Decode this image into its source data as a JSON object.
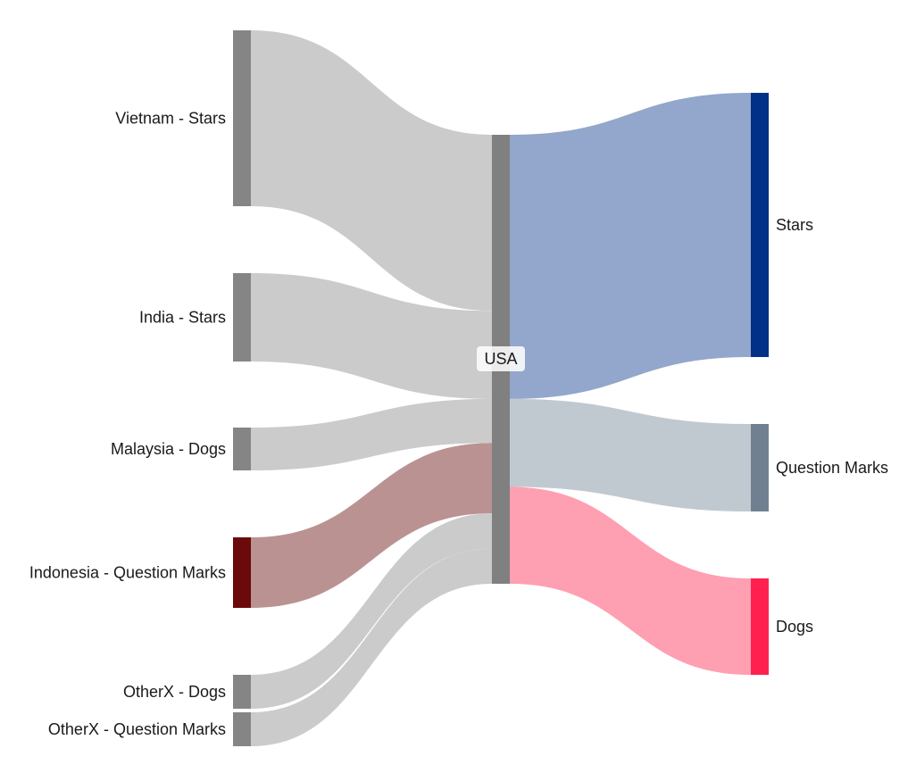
{
  "chart_data": {
    "type": "sankey",
    "nodes": [
      {
        "id": "vietnam_stars",
        "label": "Vietnam - Stars",
        "color": "#858585"
      },
      {
        "id": "india_stars",
        "label": "India - Stars",
        "color": "#858585"
      },
      {
        "id": "malaysia_dogs",
        "label": "Malaysia - Dogs",
        "color": "#858585"
      },
      {
        "id": "indonesia_qm",
        "label": "Indonesia - Question Marks",
        "color": "#6b0a0a"
      },
      {
        "id": "otherx_dogs",
        "label": "OtherX - Dogs",
        "color": "#858585"
      },
      {
        "id": "otherx_qm",
        "label": "OtherX - Question Marks",
        "color": "#858585"
      },
      {
        "id": "usa",
        "label": "USA",
        "color": "#808080"
      },
      {
        "id": "stars",
        "label": "Stars",
        "color": "#003087"
      },
      {
        "id": "question_marks",
        "label": "Question Marks",
        "color": "#708090"
      },
      {
        "id": "dogs",
        "label": "Dogs",
        "color": "#ff2050"
      }
    ],
    "links": [
      {
        "source": "vietnam_stars",
        "target": "usa",
        "value": 20,
        "color": "#c8c8c8"
      },
      {
        "source": "india_stars",
        "target": "usa",
        "value": 10,
        "color": "#c8c8c8"
      },
      {
        "source": "malaysia_dogs",
        "target": "usa",
        "value": 5,
        "color": "#c8c8c8"
      },
      {
        "source": "indonesia_qm",
        "target": "usa",
        "value": 8,
        "color": "#b78c8c"
      },
      {
        "source": "otherx_dogs",
        "target": "usa",
        "value": 4,
        "color": "#c8c8c8"
      },
      {
        "source": "otherx_qm",
        "target": "usa",
        "value": 4,
        "color": "#c8c8c8"
      },
      {
        "source": "usa",
        "target": "stars",
        "value": 30,
        "color": "#8da1c8"
      },
      {
        "source": "usa",
        "target": "question_marks",
        "value": 10,
        "color": "#bec6cd"
      },
      {
        "source": "usa",
        "target": "dogs",
        "value": 11,
        "color": "#ff9aae"
      }
    ]
  }
}
